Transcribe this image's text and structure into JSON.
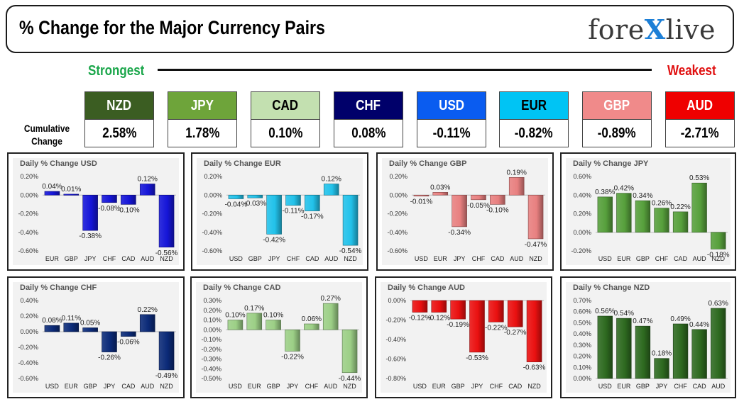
{
  "header": {
    "title": "% Change for the Major Currency Pairs",
    "logo_left": "fore",
    "logo_x": "X",
    "logo_right": "live"
  },
  "strength": {
    "strongest": "Strongest",
    "weakest": "Weakest"
  },
  "cumulative_label_line1": "Cumulative",
  "cumulative_label_line2": "Change",
  "currencies": [
    {
      "code": "NZD",
      "value": "2.58%",
      "color": "#3b5d22",
      "text_color": "#ffffff"
    },
    {
      "code": "JPY",
      "value": "1.78%",
      "color": "#6ea43a",
      "text_color": "#ffffff"
    },
    {
      "code": "CAD",
      "value": "0.10%",
      "color": "#c3e0b0",
      "text_color": "#000000"
    },
    {
      "code": "CHF",
      "value": "0.08%",
      "color": "#00006a",
      "text_color": "#ffffff"
    },
    {
      "code": "USD",
      "value": "-0.11%",
      "color": "#0a5cf0",
      "text_color": "#ffffff"
    },
    {
      "code": "EUR",
      "value": "-0.82%",
      "color": "#00c4f4",
      "text_color": "#000000"
    },
    {
      "code": "GBP",
      "value": "-0.89%",
      "color": "#f08a8a",
      "text_color": "#ffffff"
    },
    {
      "code": "AUD",
      "value": "-2.71%",
      "color": "#ef0000",
      "text_color": "#ffffff"
    }
  ],
  "chart_data": [
    {
      "type": "bar",
      "title": "Daily % Change USD",
      "categories": [
        "EUR",
        "GBP",
        "JPY",
        "CHF",
        "CAD",
        "AUD",
        "NZD"
      ],
      "values": [
        0.04,
        0.01,
        -0.38,
        -0.08,
        -0.1,
        0.12,
        -0.56
      ],
      "labels": [
        "0.04%",
        "0.01%",
        "-0.38%",
        "-0.08%",
        "-0.10%",
        "0.12%",
        "-0.56%"
      ],
      "yticks": [
        0.2,
        0,
        -0.2,
        -0.4,
        -0.6
      ],
      "ytick_labels": [
        "0.20%",
        "0.00%",
        "-0.20%",
        "-0.40%",
        "-0.60%"
      ],
      "ylim": [
        -0.6,
        0.2
      ],
      "color": "#1515d8"
    },
    {
      "type": "bar",
      "title": "Daily % Change EUR",
      "categories": [
        "USD",
        "GBP",
        "JPY",
        "CHF",
        "CAD",
        "AUD",
        "NZD"
      ],
      "values": [
        -0.04,
        -0.03,
        -0.42,
        -0.11,
        -0.17,
        0.12,
        -0.54
      ],
      "labels": [
        "-0.04%",
        "-0.03%",
        "-0.42%",
        "-0.11%",
        "-0.17%",
        "0.12%",
        "-0.54%"
      ],
      "yticks": [
        0.2,
        0,
        -0.2,
        -0.4,
        -0.6
      ],
      "ytick_labels": [
        "0.20%",
        "0.00%",
        "-0.20%",
        "-0.40%",
        "-0.60%"
      ],
      "ylim": [
        -0.6,
        0.2
      ],
      "color": "#22c2ea"
    },
    {
      "type": "bar",
      "title": "Daily % Change GBP",
      "categories": [
        "USD",
        "EUR",
        "JPY",
        "CHF",
        "CAD",
        "AUD",
        "NZD"
      ],
      "values": [
        -0.01,
        0.03,
        -0.34,
        -0.05,
        -0.1,
        0.19,
        -0.47
      ],
      "labels": [
        "-0.01%",
        "0.03%",
        "-0.34%",
        "-0.05%",
        "-0.10%",
        "0.19%",
        "-0.47%"
      ],
      "yticks": [
        0.2,
        0,
        -0.2,
        -0.4,
        -0.6
      ],
      "ytick_labels": [
        "0.20%",
        "0.00%",
        "-0.20%",
        "-0.40%",
        "-0.60%"
      ],
      "ylim": [
        -0.6,
        0.2
      ],
      "color": "#e88080"
    },
    {
      "type": "bar",
      "title": "Daily % Change JPY",
      "categories": [
        "USD",
        "EUR",
        "GBP",
        "CHF",
        "CAD",
        "AUD",
        "NZD"
      ],
      "values": [
        0.38,
        0.42,
        0.34,
        0.26,
        0.22,
        0.53,
        -0.18
      ],
      "labels": [
        "0.38%",
        "0.42%",
        "0.34%",
        "0.26%",
        "0.22%",
        "0.53%",
        "-0.18%"
      ],
      "yticks": [
        0.6,
        0.4,
        0.2,
        0,
        -0.2
      ],
      "ytick_labels": [
        "0.60%",
        "0.40%",
        "0.20%",
        "0.00%",
        "-0.20%"
      ],
      "ylim": [
        -0.2,
        0.6
      ],
      "color": "#57a03c"
    },
    {
      "type": "bar",
      "title": "Daily % Change CHF",
      "categories": [
        "USD",
        "EUR",
        "GBP",
        "JPY",
        "CAD",
        "AUD",
        "NZD"
      ],
      "values": [
        0.08,
        0.11,
        0.05,
        -0.26,
        -0.06,
        0.22,
        -0.49
      ],
      "labels": [
        "0.08%",
        "0.11%",
        "0.05%",
        "-0.26%",
        "-0.06%",
        "0.22%",
        "-0.49%"
      ],
      "yticks": [
        0.4,
        0.2,
        0,
        -0.2,
        -0.4,
        -0.6
      ],
      "ytick_labels": [
        "0.40%",
        "0.20%",
        "0.00%",
        "-0.20%",
        "-0.40%",
        "-0.60%"
      ],
      "ylim": [
        -0.6,
        0.4
      ],
      "color": "#0b2a78"
    },
    {
      "type": "bar",
      "title": "Daily % Change CAD",
      "categories": [
        "USD",
        "EUR",
        "GBP",
        "JPY",
        "CHF",
        "AUD",
        "NZD"
      ],
      "values": [
        0.1,
        0.17,
        0.1,
        -0.22,
        0.06,
        0.27,
        -0.44
      ],
      "labels": [
        "0.10%",
        "0.17%",
        "0.10%",
        "-0.22%",
        "0.06%",
        "0.27%",
        "-0.44%"
      ],
      "yticks": [
        0.3,
        0.2,
        0.1,
        0,
        -0.1,
        -0.2,
        -0.3,
        -0.4,
        -0.5
      ],
      "ytick_labels": [
        "0.30%",
        "0.20%",
        "0.10%",
        "0.00%",
        "-0.10%",
        "-0.20%",
        "-0.30%",
        "-0.40%",
        "-0.50%"
      ],
      "ylim": [
        -0.5,
        0.3
      ],
      "color": "#9ccf86"
    },
    {
      "type": "bar",
      "title": "Daily % Change AUD",
      "categories": [
        "USD",
        "EUR",
        "GBP",
        "JPY",
        "CHF",
        "CAD",
        "NZD"
      ],
      "values": [
        -0.12,
        -0.12,
        -0.19,
        -0.53,
        -0.22,
        -0.27,
        -0.63
      ],
      "labels": [
        "-0.12%",
        "-0.12%",
        "-0.19%",
        "-0.53%",
        "-0.22%",
        "-0.27%",
        "-0.63%"
      ],
      "yticks": [
        0,
        -0.2,
        -0.4,
        -0.6,
        -0.8
      ],
      "ytick_labels": [
        "0.00%",
        "-0.20%",
        "-0.40%",
        "-0.60%",
        "-0.80%"
      ],
      "ylim": [
        -0.8,
        0
      ],
      "color": "#ea1010"
    },
    {
      "type": "bar",
      "title": "Daily % Change NZD",
      "categories": [
        "USD",
        "EUR",
        "GBP",
        "JPY",
        "CHF",
        "CAD",
        "AUD"
      ],
      "values": [
        0.56,
        0.54,
        0.47,
        0.18,
        0.49,
        0.44,
        0.63
      ],
      "labels": [
        "0.56%",
        "0.54%",
        "0.47%",
        "0.18%",
        "0.49%",
        "0.44%",
        "0.63%"
      ],
      "yticks": [
        0.7,
        0.6,
        0.5,
        0.4,
        0.3,
        0.2,
        0.1,
        0
      ],
      "ytick_labels": [
        "0.70%",
        "0.60%",
        "0.50%",
        "0.40%",
        "0.30%",
        "0.20%",
        "0.10%",
        "0.00%"
      ],
      "ylim": [
        0,
        0.7
      ],
      "color": "#2e6a20"
    }
  ]
}
